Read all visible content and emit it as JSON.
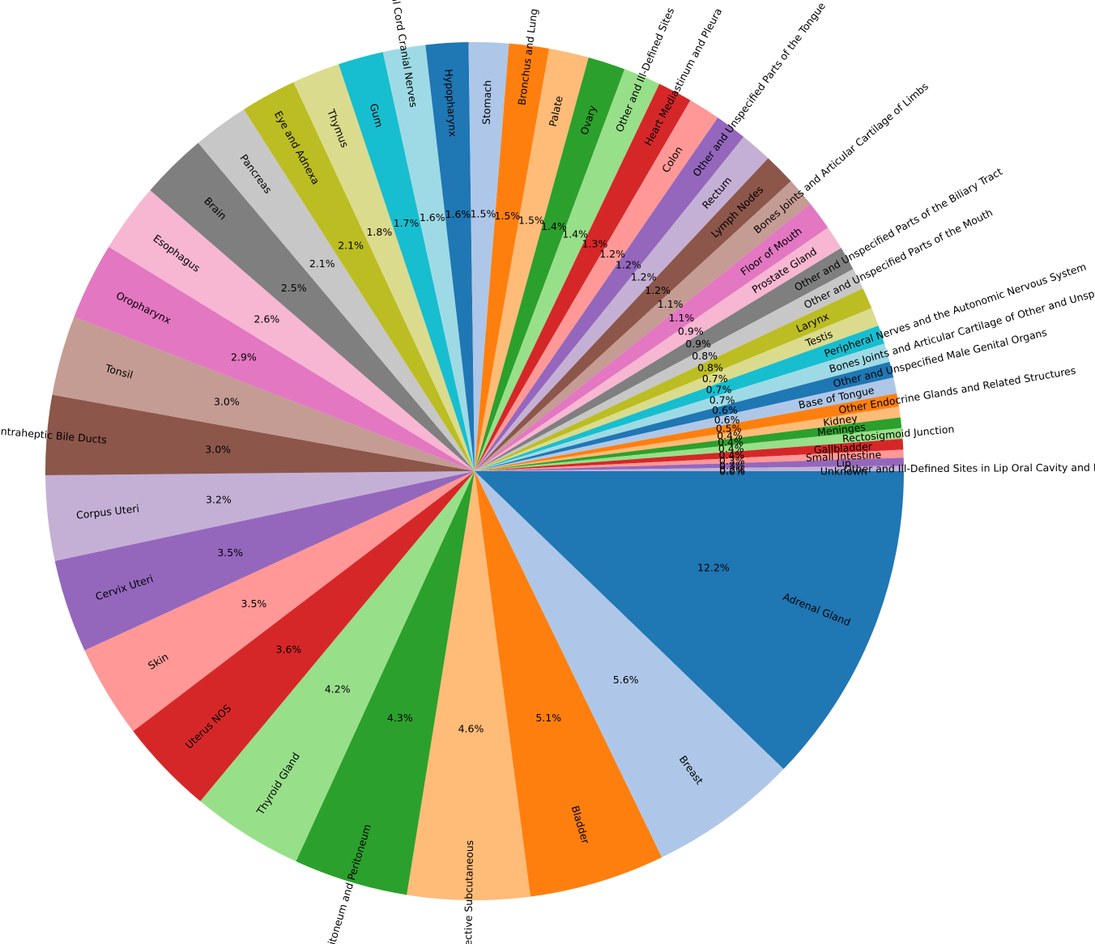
{
  "chart_data": {
    "type": "pie",
    "start_angle_deg": 0,
    "direction": "clockwise",
    "percent_format": "{:.1f}%",
    "slices": [
      {
        "label": "Adrenal Gland",
        "value": 12.2,
        "color": "#1f77b4"
      },
      {
        "label": "Breast",
        "value": 5.6,
        "color": "#aec7e8"
      },
      {
        "label": "Bladder",
        "value": 5.1,
        "color": "#ff7f0e"
      },
      {
        "label": "Connective Subcutaneous",
        "value": 4.6,
        "color": "#ffbb78"
      },
      {
        "label": "Retroperitoneum and Peritoneum",
        "value": 4.3,
        "color": "#2ca02c"
      },
      {
        "label": "Thyroid Gland",
        "value": 4.2,
        "color": "#98df8a"
      },
      {
        "label": "Uterus NOS",
        "value": 3.6,
        "color": "#d62728"
      },
      {
        "label": "Skin",
        "value": 3.5,
        "color": "#ff9896"
      },
      {
        "label": "Cervix Uteri",
        "value": 3.5,
        "color": "#9467bd"
      },
      {
        "label": "Corpus Uteri",
        "value": 3.2,
        "color": "#c5b0d5"
      },
      {
        "label": "Liver and Intraheptic Bile Ducts",
        "value": 3.0,
        "color": "#8c564b"
      },
      {
        "label": "Tonsil",
        "value": 3.0,
        "color": "#c49c94"
      },
      {
        "label": "Oropharynx",
        "value": 2.9,
        "color": "#e377c2"
      },
      {
        "label": "Esophagus",
        "value": 2.6,
        "color": "#f7b6d2"
      },
      {
        "label": "Brain",
        "value": 2.5,
        "color": "#7f7f7f"
      },
      {
        "label": "Pancreas",
        "value": 2.1,
        "color": "#c7c7c7"
      },
      {
        "label": "Eye and Adnexa",
        "value": 2.1,
        "color": "#bcbd22"
      },
      {
        "label": "Thymus",
        "value": 1.8,
        "color": "#dbdb8d"
      },
      {
        "label": "Gum",
        "value": 1.7,
        "color": "#17becf"
      },
      {
        "label": "Spinal Cord Cranial Nerves",
        "value": 1.6,
        "color": "#9edae5"
      },
      {
        "label": "Hypopharynx",
        "value": 1.6,
        "color": "#1f77b4"
      },
      {
        "label": "Stomach",
        "value": 1.5,
        "color": "#aec7e8"
      },
      {
        "label": "Bronchus and Lung",
        "value": 1.5,
        "color": "#ff7f0e"
      },
      {
        "label": "Palate",
        "value": 1.5,
        "color": "#ffbb78"
      },
      {
        "label": "Ovary",
        "value": 1.4,
        "color": "#2ca02c"
      },
      {
        "label": "Other and Ill-Defined Sites",
        "value": 1.4,
        "color": "#98df8a"
      },
      {
        "label": "Heart Mediastinum and Pleura",
        "value": 1.3,
        "color": "#d62728"
      },
      {
        "label": "Colon",
        "value": 1.2,
        "color": "#ff9896"
      },
      {
        "label": "Other and Unspecified Parts of the Tongue",
        "value": 1.2,
        "color": "#9467bd"
      },
      {
        "label": "Rectum",
        "value": 1.2,
        "color": "#c5b0d5"
      },
      {
        "label": "Lymph Nodes",
        "value": 1.2,
        "color": "#8c564b"
      },
      {
        "label": "Bones Joints and Articular Cartilage of Limbs",
        "value": 1.1,
        "color": "#c49c94"
      },
      {
        "label": "Floor of Mouth",
        "value": 1.1,
        "color": "#e377c2"
      },
      {
        "label": "Prostate Gland",
        "value": 0.9,
        "color": "#f7b6d2"
      },
      {
        "label": "Other and Unspecified Parts of the Biliary Tract",
        "value": 0.9,
        "color": "#7f7f7f"
      },
      {
        "label": "Other and Unspecified Parts of the Mouth",
        "value": 0.8,
        "color": "#c7c7c7"
      },
      {
        "label": "Larynx",
        "value": 0.8,
        "color": "#bcbd22"
      },
      {
        "label": "Testis",
        "value": 0.7,
        "color": "#dbdb8d"
      },
      {
        "label": "Peripheral Nerves and the Autonomic Nervous System",
        "value": 0.7,
        "color": "#17becf"
      },
      {
        "label": "Bones Joints and Articular Cartilage of Other and Unspecified Sites",
        "value": 0.7,
        "color": "#9edae5"
      },
      {
        "label": "Other and Unspecified Male Genital Organs",
        "value": 0.6,
        "color": "#1f77b4"
      },
      {
        "label": "Base of Tongue",
        "value": 0.6,
        "color": "#aec7e8"
      },
      {
        "label": "Other Endocrine Glands and Related Structures",
        "value": 0.5,
        "color": "#ff7f0e"
      },
      {
        "label": "Kidney",
        "value": 0.4,
        "color": "#ffbb78"
      },
      {
        "label": "Meninges",
        "value": 0.4,
        "color": "#2ca02c"
      },
      {
        "label": "Rectosigmoid Junction",
        "value": 0.4,
        "color": "#98df8a"
      },
      {
        "label": "Gallbladder",
        "value": 0.4,
        "color": "#d62728"
      },
      {
        "label": "Small Intestine",
        "value": 0.3,
        "color": "#ff9896"
      },
      {
        "label": "Lip",
        "value": 0.3,
        "color": "#9467bd"
      },
      {
        "label": "Other and Ill-Defined Sites in Lip Oral Cavity and Pharynx",
        "value": 0.2,
        "color": "#c5b0d5"
      },
      {
        "label": "Unknown",
        "value": 0.0,
        "color": "#8c564b"
      }
    ]
  }
}
